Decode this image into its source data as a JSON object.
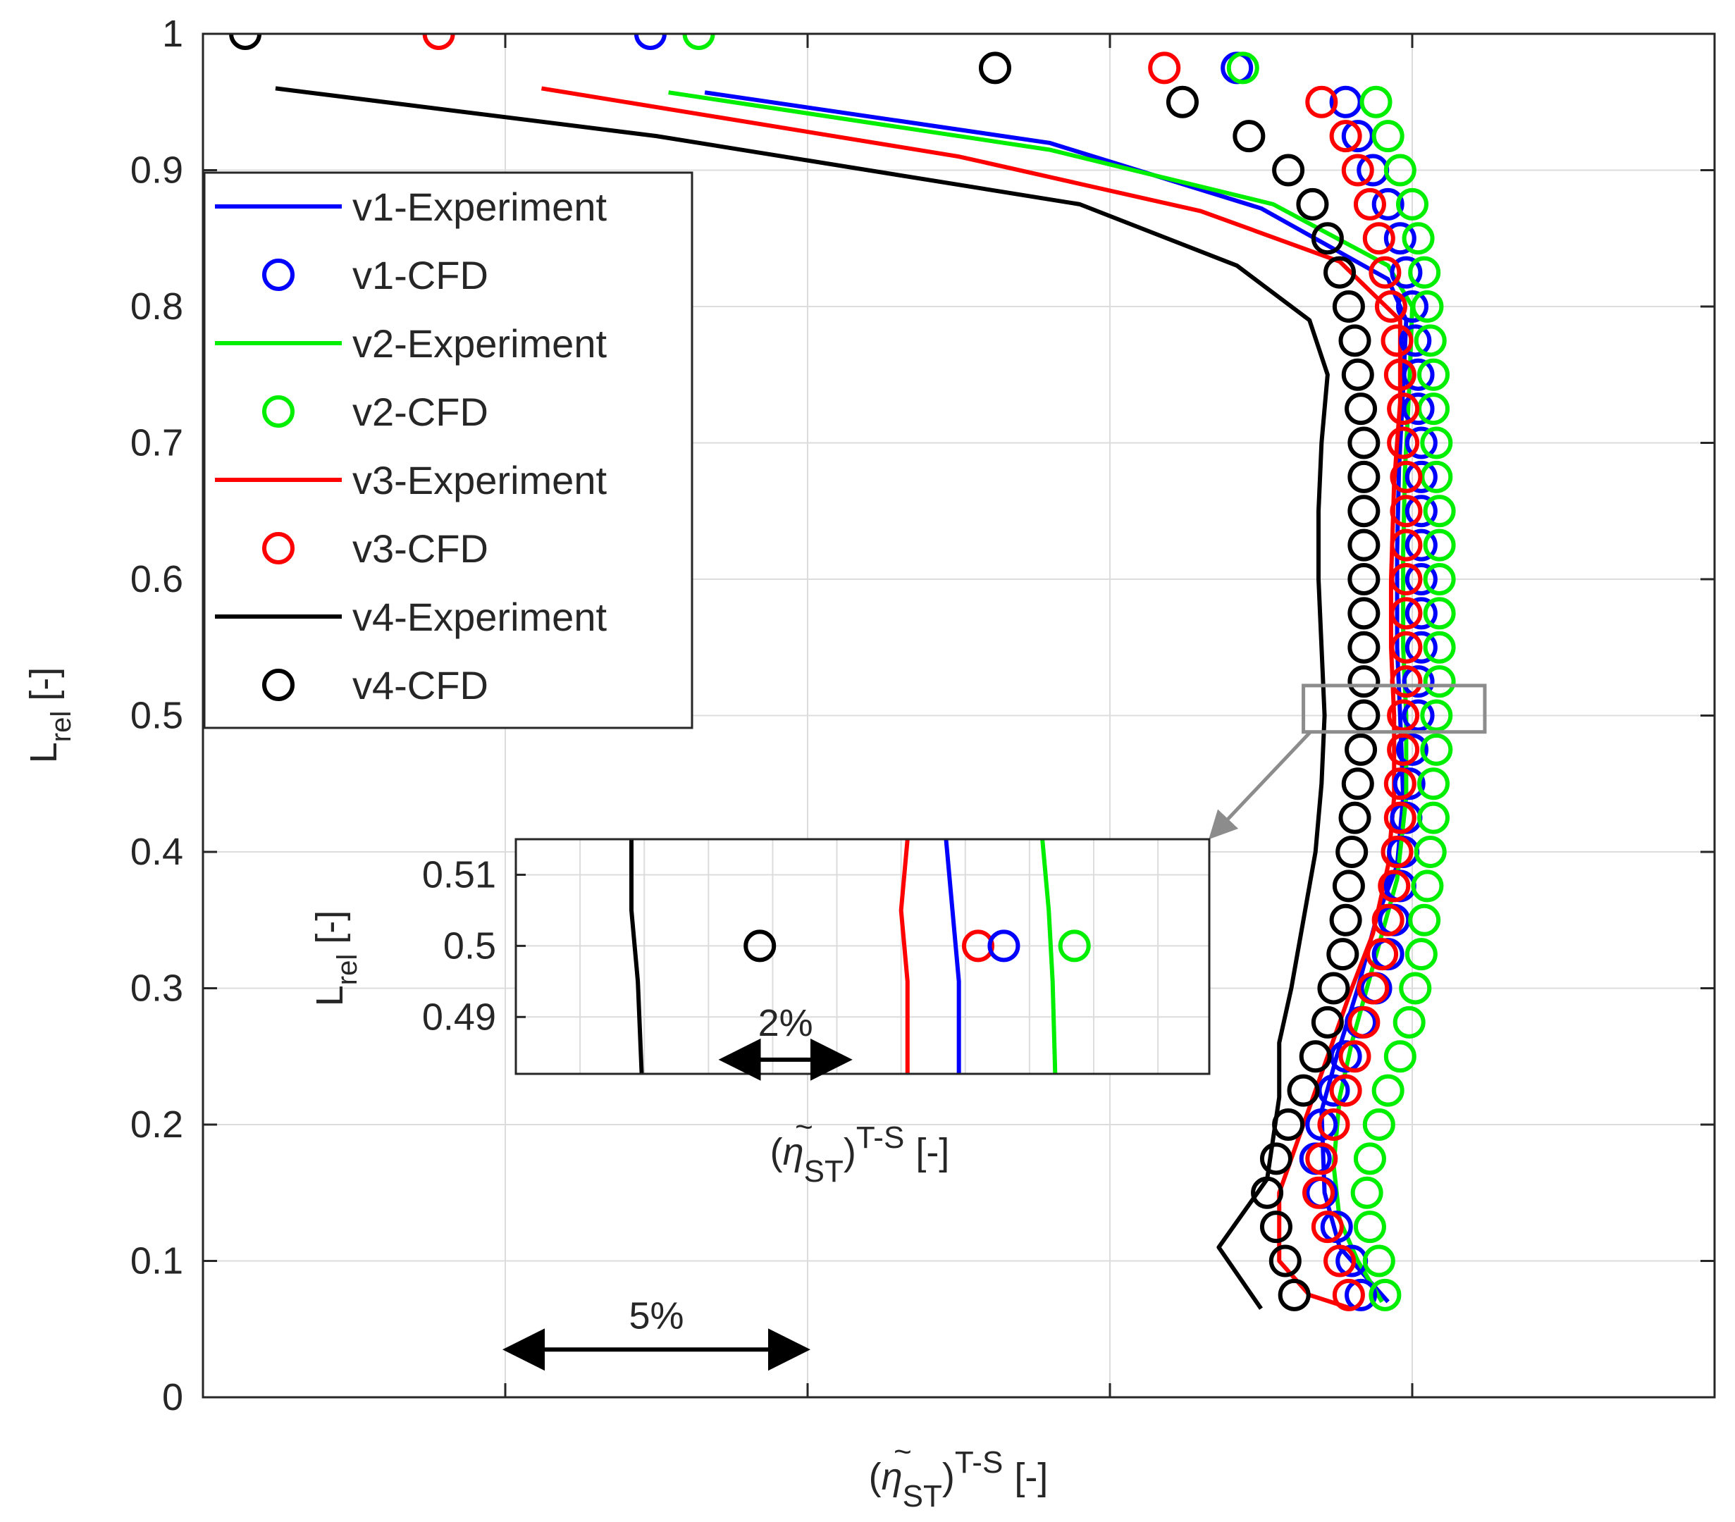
{
  "chart_data": {
    "type": "scatter",
    "title": "",
    "x_units_note": "x-axis unlabeled; x expressed in percentage points of efficiency, grid spacing = 5",
    "xlim": [
      0,
      25
    ],
    "ylim": [
      0,
      1
    ],
    "grid": true,
    "legend_position": "top-left",
    "yticks": [
      0,
      0.1,
      0.2,
      0.3,
      0.4,
      0.5,
      0.6,
      0.7,
      0.8,
      0.9,
      1
    ],
    "ytick_labels": [
      "0",
      "0.1",
      "0.2",
      "0.3",
      "0.4",
      "0.5",
      "0.6",
      "0.7",
      "0.8",
      "0.9",
      "1"
    ],
    "xlabel": {
      "open": "(",
      "eta": "η",
      "tilde": "~",
      "sub": "ST",
      "close": ")",
      "sup": "T-S",
      "unit": "[-]"
    },
    "ylabel": {
      "main": "L",
      "sub": "rel",
      "unit": "[-]"
    },
    "colors": {
      "v1": "#0000ff",
      "v2": "#00ee00",
      "v3": "#ff0000",
      "v4": "#000000"
    },
    "series": [
      {
        "name": "v1-Experiment",
        "kind": "line",
        "color": "#0000ff",
        "points": [
          [
            8.3,
            0.957
          ],
          [
            14,
            0.92
          ],
          [
            17.5,
            0.872
          ],
          [
            19.6,
            0.82
          ],
          [
            19.9,
            0.79
          ],
          [
            19.85,
            0.74
          ],
          [
            19.78,
            0.68
          ],
          [
            19.75,
            0.62
          ],
          [
            19.75,
            0.55
          ],
          [
            19.8,
            0.5
          ],
          [
            19.85,
            0.44
          ],
          [
            19.75,
            0.39
          ],
          [
            19.4,
            0.35
          ],
          [
            19.1,
            0.3
          ],
          [
            18.75,
            0.25
          ],
          [
            18.5,
            0.21
          ],
          [
            18.55,
            0.15
          ],
          [
            18.8,
            0.11
          ],
          [
            19.2,
            0.09
          ],
          [
            19.6,
            0.07
          ]
        ]
      },
      {
        "name": "v1-CFD",
        "kind": "scatter",
        "color": "#0000ff",
        "points": [
          [
            7.4,
            1
          ],
          [
            17.1,
            0.975
          ],
          [
            18.9,
            0.95
          ],
          [
            19.1,
            0.925
          ],
          [
            19.35,
            0.9
          ],
          [
            19.6,
            0.875
          ],
          [
            19.8,
            0.85
          ],
          [
            19.9,
            0.825
          ],
          [
            20.0,
            0.8
          ],
          [
            20.05,
            0.775
          ],
          [
            20.1,
            0.75
          ],
          [
            20.1,
            0.725
          ],
          [
            20.15,
            0.7
          ],
          [
            20.15,
            0.675
          ],
          [
            20.15,
            0.65
          ],
          [
            20.15,
            0.625
          ],
          [
            20.15,
            0.6
          ],
          [
            20.15,
            0.575
          ],
          [
            20.15,
            0.55
          ],
          [
            20.1,
            0.525
          ],
          [
            20.1,
            0.5
          ],
          [
            20.0,
            0.475
          ],
          [
            19.95,
            0.45
          ],
          [
            19.9,
            0.425
          ],
          [
            19.85,
            0.4
          ],
          [
            19.8,
            0.375
          ],
          [
            19.7,
            0.35
          ],
          [
            19.6,
            0.325
          ],
          [
            19.4,
            0.3
          ],
          [
            19.15,
            0.275
          ],
          [
            18.9,
            0.25
          ],
          [
            18.7,
            0.225
          ],
          [
            18.5,
            0.2
          ],
          [
            18.4,
            0.175
          ],
          [
            18.5,
            0.15
          ],
          [
            18.75,
            0.125
          ],
          [
            19.0,
            0.1
          ],
          [
            19.15,
            0.075
          ]
        ]
      },
      {
        "name": "v2-Experiment",
        "kind": "line",
        "color": "#00ee00",
        "points": [
          [
            7.7,
            0.957
          ],
          [
            14,
            0.915
          ],
          [
            17.7,
            0.875
          ],
          [
            19.6,
            0.83
          ],
          [
            20.0,
            0.8
          ],
          [
            19.95,
            0.74
          ],
          [
            19.88,
            0.68
          ],
          [
            19.85,
            0.62
          ],
          [
            19.85,
            0.55
          ],
          [
            19.9,
            0.5
          ],
          [
            19.9,
            0.44
          ],
          [
            19.75,
            0.38
          ],
          [
            19.5,
            0.34
          ],
          [
            19.25,
            0.3
          ],
          [
            19.0,
            0.26
          ],
          [
            18.8,
            0.22
          ],
          [
            18.7,
            0.17
          ],
          [
            18.8,
            0.13
          ],
          [
            19.1,
            0.1
          ],
          [
            19.5,
            0.07
          ]
        ]
      },
      {
        "name": "v2-CFD",
        "kind": "scatter",
        "color": "#00ee00",
        "points": [
          [
            8.2,
            1
          ],
          [
            17.2,
            0.975
          ],
          [
            19.4,
            0.95
          ],
          [
            19.6,
            0.925
          ],
          [
            19.8,
            0.9
          ],
          [
            20.0,
            0.875
          ],
          [
            20.1,
            0.85
          ],
          [
            20.2,
            0.825
          ],
          [
            20.25,
            0.8
          ],
          [
            20.3,
            0.775
          ],
          [
            20.35,
            0.75
          ],
          [
            20.35,
            0.725
          ],
          [
            20.4,
            0.7
          ],
          [
            20.4,
            0.675
          ],
          [
            20.45,
            0.65
          ],
          [
            20.45,
            0.625
          ],
          [
            20.45,
            0.6
          ],
          [
            20.45,
            0.575
          ],
          [
            20.45,
            0.55
          ],
          [
            20.45,
            0.525
          ],
          [
            20.4,
            0.5
          ],
          [
            20.4,
            0.475
          ],
          [
            20.35,
            0.45
          ],
          [
            20.35,
            0.425
          ],
          [
            20.3,
            0.4
          ],
          [
            20.25,
            0.375
          ],
          [
            20.2,
            0.35
          ],
          [
            20.15,
            0.325
          ],
          [
            20.05,
            0.3
          ],
          [
            19.95,
            0.275
          ],
          [
            19.8,
            0.25
          ],
          [
            19.6,
            0.225
          ],
          [
            19.45,
            0.2
          ],
          [
            19.3,
            0.175
          ],
          [
            19.25,
            0.15
          ],
          [
            19.3,
            0.125
          ],
          [
            19.45,
            0.1
          ],
          [
            19.55,
            0.075
          ]
        ]
      },
      {
        "name": "v3-Experiment",
        "kind": "line",
        "color": "#ff0000",
        "points": [
          [
            5.6,
            0.96
          ],
          [
            12.5,
            0.91
          ],
          [
            16.5,
            0.87
          ],
          [
            18.8,
            0.833
          ],
          [
            19.8,
            0.79
          ],
          [
            19.8,
            0.73
          ],
          [
            19.7,
            0.67
          ],
          [
            19.65,
            0.6
          ],
          [
            19.65,
            0.55
          ],
          [
            19.7,
            0.5
          ],
          [
            19.7,
            0.44
          ],
          [
            19.6,
            0.39
          ],
          [
            19.35,
            0.34
          ],
          [
            19.0,
            0.3
          ],
          [
            18.6,
            0.25
          ],
          [
            18.2,
            0.2
          ],
          [
            17.8,
            0.15
          ],
          [
            17.8,
            0.1
          ],
          [
            18.3,
            0.075
          ],
          [
            19.0,
            0.065
          ]
        ]
      },
      {
        "name": "v3-CFD",
        "kind": "scatter",
        "color": "#ff0000",
        "points": [
          [
            3.9,
            1
          ],
          [
            15.9,
            0.975
          ],
          [
            18.5,
            0.95
          ],
          [
            18.9,
            0.925
          ],
          [
            19.1,
            0.9
          ],
          [
            19.3,
            0.875
          ],
          [
            19.45,
            0.85
          ],
          [
            19.55,
            0.825
          ],
          [
            19.65,
            0.8
          ],
          [
            19.75,
            0.775
          ],
          [
            19.8,
            0.75
          ],
          [
            19.85,
            0.725
          ],
          [
            19.85,
            0.7
          ],
          [
            19.9,
            0.675
          ],
          [
            19.9,
            0.65
          ],
          [
            19.9,
            0.625
          ],
          [
            19.9,
            0.6
          ],
          [
            19.9,
            0.575
          ],
          [
            19.9,
            0.55
          ],
          [
            19.9,
            0.525
          ],
          [
            19.85,
            0.5
          ],
          [
            19.85,
            0.475
          ],
          [
            19.8,
            0.45
          ],
          [
            19.8,
            0.425
          ],
          [
            19.75,
            0.4
          ],
          [
            19.7,
            0.375
          ],
          [
            19.6,
            0.35
          ],
          [
            19.5,
            0.325
          ],
          [
            19.35,
            0.3
          ],
          [
            19.2,
            0.275
          ],
          [
            19.05,
            0.25
          ],
          [
            18.9,
            0.225
          ],
          [
            18.7,
            0.2
          ],
          [
            18.5,
            0.175
          ],
          [
            18.45,
            0.15
          ],
          [
            18.6,
            0.125
          ],
          [
            18.8,
            0.1
          ],
          [
            18.95,
            0.075
          ]
        ]
      },
      {
        "name": "v4-Experiment",
        "kind": "line",
        "color": "#000000",
        "points": [
          [
            1.2,
            0.96
          ],
          [
            7.5,
            0.925
          ],
          [
            14.5,
            0.875
          ],
          [
            17.1,
            0.83
          ],
          [
            18.3,
            0.79
          ],
          [
            18.6,
            0.75
          ],
          [
            18.5,
            0.7
          ],
          [
            18.45,
            0.65
          ],
          [
            18.45,
            0.6
          ],
          [
            18.5,
            0.55
          ],
          [
            18.55,
            0.5
          ],
          [
            18.5,
            0.45
          ],
          [
            18.4,
            0.4
          ],
          [
            18.2,
            0.35
          ],
          [
            18.0,
            0.3
          ],
          [
            17.8,
            0.26
          ],
          [
            17.8,
            0.22
          ],
          [
            17.6,
            0.16
          ],
          [
            16.8,
            0.11
          ],
          [
            17.5,
            0.065
          ]
        ]
      },
      {
        "name": "v4-CFD",
        "kind": "scatter",
        "color": "#000000",
        "points": [
          [
            0.7,
            1
          ],
          [
            13.1,
            0.975
          ],
          [
            16.2,
            0.95
          ],
          [
            17.3,
            0.925
          ],
          [
            17.95,
            0.9
          ],
          [
            18.35,
            0.875
          ],
          [
            18.6,
            0.85
          ],
          [
            18.8,
            0.825
          ],
          [
            18.95,
            0.8
          ],
          [
            19.05,
            0.775
          ],
          [
            19.1,
            0.75
          ],
          [
            19.15,
            0.725
          ],
          [
            19.2,
            0.7
          ],
          [
            19.2,
            0.675
          ],
          [
            19.2,
            0.65
          ],
          [
            19.2,
            0.625
          ],
          [
            19.2,
            0.6
          ],
          [
            19.2,
            0.575
          ],
          [
            19.2,
            0.55
          ],
          [
            19.2,
            0.525
          ],
          [
            19.2,
            0.5
          ],
          [
            19.15,
            0.475
          ],
          [
            19.1,
            0.45
          ],
          [
            19.05,
            0.425
          ],
          [
            19.0,
            0.4
          ],
          [
            18.95,
            0.375
          ],
          [
            18.9,
            0.35
          ],
          [
            18.85,
            0.325
          ],
          [
            18.7,
            0.3
          ],
          [
            18.6,
            0.275
          ],
          [
            18.4,
            0.25
          ],
          [
            18.2,
            0.225
          ],
          [
            17.95,
            0.2
          ],
          [
            17.75,
            0.175
          ],
          [
            17.6,
            0.15
          ],
          [
            17.75,
            0.125
          ],
          [
            17.9,
            0.1
          ],
          [
            18.05,
            0.075
          ]
        ]
      }
    ],
    "zoom_box": {
      "x": [
        18.2,
        21.2
      ],
      "y": [
        0.488,
        0.522
      ]
    },
    "inset": {
      "xlim": [
        0,
        5.4
      ],
      "ylim": [
        0.482,
        0.515
      ],
      "yticks": [
        0.49,
        0.5,
        0.51
      ],
      "ytick_labels": [
        "0.49",
        "0.5",
        "0.51"
      ],
      "xlabel": {
        "open": "(",
        "eta": "η",
        "tilde": "~",
        "sub": "ST",
        "close": ")",
        "sup": "T-S",
        "unit": "[-]"
      },
      "ylabel": {
        "main": "L",
        "sub": "rel",
        "unit": "[-]"
      },
      "lines": [
        {
          "name": "v4-Experiment",
          "color": "#000000",
          "points": [
            [
              0.9,
              0.515
            ],
            [
              0.9,
              0.505
            ],
            [
              0.95,
              0.495
            ],
            [
              0.98,
              0.482
            ]
          ]
        },
        {
          "name": "v3-Experiment",
          "color": "#ff0000",
          "points": [
            [
              3.05,
              0.515
            ],
            [
              3.0,
              0.505
            ],
            [
              3.05,
              0.495
            ],
            [
              3.05,
              0.482
            ]
          ]
        },
        {
          "name": "v1-Experiment",
          "color": "#0000ff",
          "points": [
            [
              3.35,
              0.515
            ],
            [
              3.4,
              0.505
            ],
            [
              3.45,
              0.495
            ],
            [
              3.45,
              0.482
            ]
          ]
        },
        {
          "name": "v2-Experiment",
          "color": "#00ee00",
          "points": [
            [
              4.1,
              0.515
            ],
            [
              4.15,
              0.505
            ],
            [
              4.18,
              0.495
            ],
            [
              4.2,
              0.482
            ]
          ]
        }
      ],
      "markers": [
        {
          "name": "v4-CFD",
          "color": "#000000",
          "x": 1.9,
          "y": 0.5
        },
        {
          "name": "v3-CFD",
          "color": "#ff0000",
          "x": 3.6,
          "y": 0.5
        },
        {
          "name": "v1-CFD",
          "color": "#0000ff",
          "x": 3.8,
          "y": 0.5
        },
        {
          "name": "v2-CFD",
          "color": "#00ee00",
          "x": 4.35,
          "y": 0.5
        }
      ],
      "scale_arrow": {
        "label": "2%",
        "from": 1.6,
        "to": 2.6,
        "y": 0.484
      }
    },
    "scale_arrow": {
      "label": "5%",
      "from": 5,
      "to": 10,
      "y": 0.035
    },
    "legend": [
      {
        "label": "v1-Experiment",
        "kind": "line",
        "color": "#0000ff"
      },
      {
        "label": "v1-CFD",
        "kind": "marker",
        "color": "#0000ff"
      },
      {
        "label": "v2-Experiment",
        "kind": "line",
        "color": "#00ee00"
      },
      {
        "label": "v2-CFD",
        "kind": "marker",
        "color": "#00ee00"
      },
      {
        "label": "v3-Experiment",
        "kind": "line",
        "color": "#ff0000"
      },
      {
        "label": "v3-CFD",
        "kind": "marker",
        "color": "#ff0000"
      },
      {
        "label": "v4-Experiment",
        "kind": "line",
        "color": "#000000"
      },
      {
        "label": "v4-CFD",
        "kind": "marker",
        "color": "#000000"
      }
    ]
  }
}
